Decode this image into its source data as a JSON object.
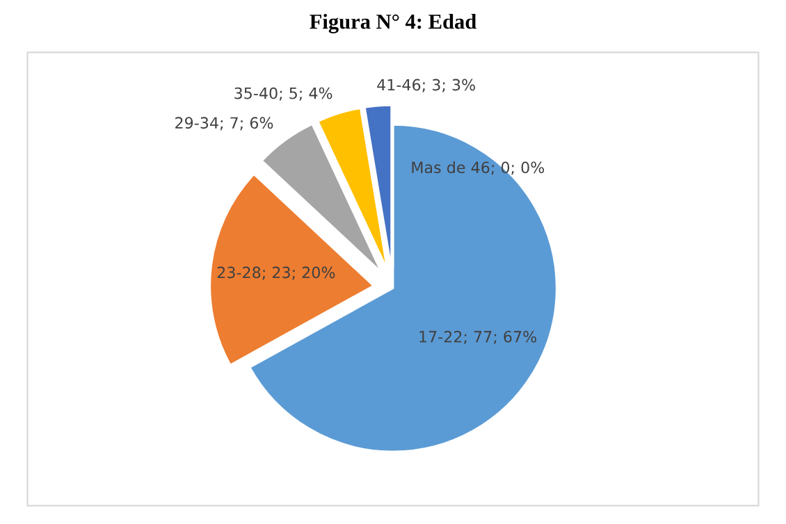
{
  "chart_data": {
    "type": "pie",
    "title": "Figura N° 4: Edad",
    "categories": [
      "17-22",
      "23-28",
      "29-34",
      "35-40",
      "41-46",
      "Mas de 46"
    ],
    "values": [
      77,
      23,
      7,
      5,
      3,
      0
    ],
    "colors": [
      "#5b9bd5",
      "#ed7d31",
      "#a5a5a5",
      "#ffc000",
      "#4472c4",
      "#70ad47"
    ],
    "value_labels": [
      "; 77; 67%",
      "; 23; 20%",
      "; 7; 6%",
      "; 5; 4%",
      "; 3; 3%",
      "; 0; 0%"
    ],
    "legend": false
  }
}
